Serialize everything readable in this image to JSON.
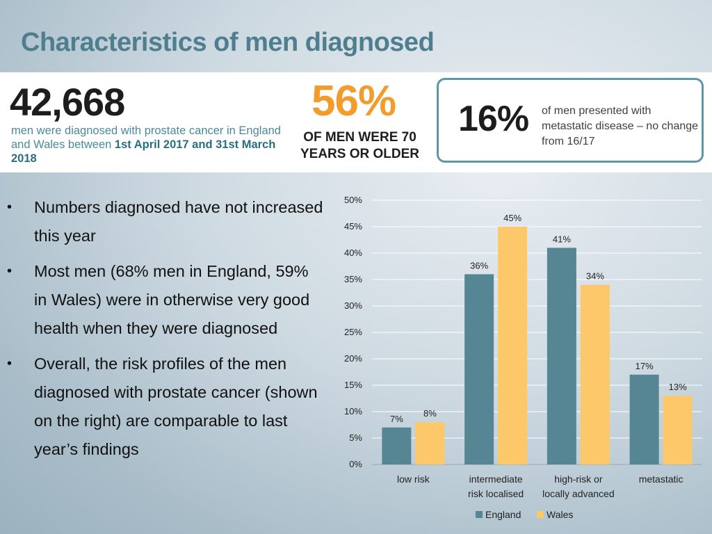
{
  "title": "Characteristics of men diagnosed",
  "banner": {
    "stat1": {
      "number": "42,668",
      "desc_prefix": "men were diagnosed with prostate cancer in England and Wales between ",
      "desc_highlight": "1st April 2017 and 31st March 2018"
    },
    "stat2": {
      "number": "56%",
      "desc": "OF MEN WERE 70 YEARS OR OLDER"
    },
    "stat3": {
      "number": "16%",
      "desc": "of men presented with metastatic disease – no change from 16/17"
    }
  },
  "bullets": [
    "Numbers diagnosed have not increased this year",
    "Most men (68% men in England, 59% in Wales) were in otherwise very good health when they were diagnosed",
    "Overall, the risk profiles of the men diagnosed with prostate cancer (shown on the right) are comparable to last year’s findings"
  ],
  "colors": {
    "england": "#568593",
    "wales": "#fdc86a",
    "title": "#4f7f8e",
    "stat_orange": "#f39c2e",
    "box_border": "#5e97a5"
  },
  "chart_data": {
    "type": "bar",
    "categories": [
      [
        "low risk"
      ],
      [
        "intermediate",
        "risk localised"
      ],
      [
        "high-risk or",
        "locally advanced"
      ],
      [
        "metastatic"
      ]
    ],
    "series": [
      {
        "name": "England",
        "values": [
          7,
          36,
          41,
          17
        ],
        "labels": [
          "7%",
          "36%",
          "41%",
          "17%"
        ]
      },
      {
        "name": "Wales",
        "values": [
          8,
          45,
          34,
          13
        ],
        "labels": [
          "8%",
          "45%",
          "34%",
          "13%"
        ]
      }
    ],
    "ylim": [
      0,
      50
    ],
    "yticks": [
      "0%",
      "5%",
      "10%",
      "15%",
      "20%",
      "25%",
      "30%",
      "35%",
      "40%",
      "45%",
      "50%"
    ],
    "grid": true,
    "legend": "bottom"
  }
}
